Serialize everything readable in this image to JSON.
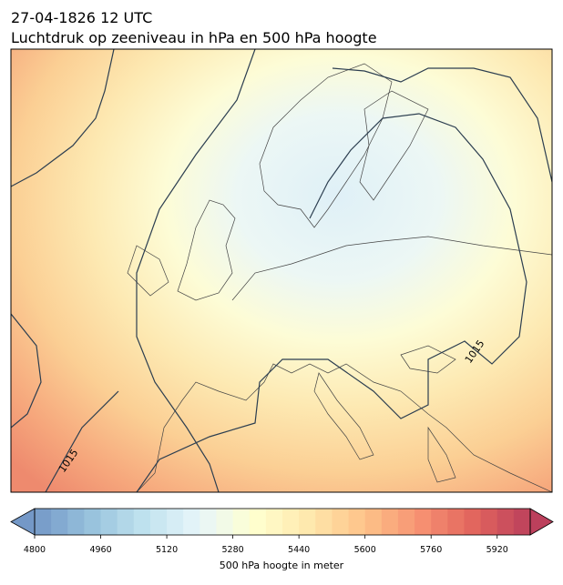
{
  "header": {
    "title_line1": "27-04-1826 12 UTC",
    "title_line2": "Luchtdruk op zeeniveau in hPa en 500 hPa hoogte"
  },
  "map": {
    "contour_labels": [
      "1015",
      "1015"
    ]
  },
  "colorbar": {
    "label": "500 hPa hoogte in meter",
    "range": [
      4800,
      6000
    ],
    "ticks": [
      4800,
      4960,
      5120,
      5280,
      5440,
      5600,
      5760,
      5920
    ]
  }
}
